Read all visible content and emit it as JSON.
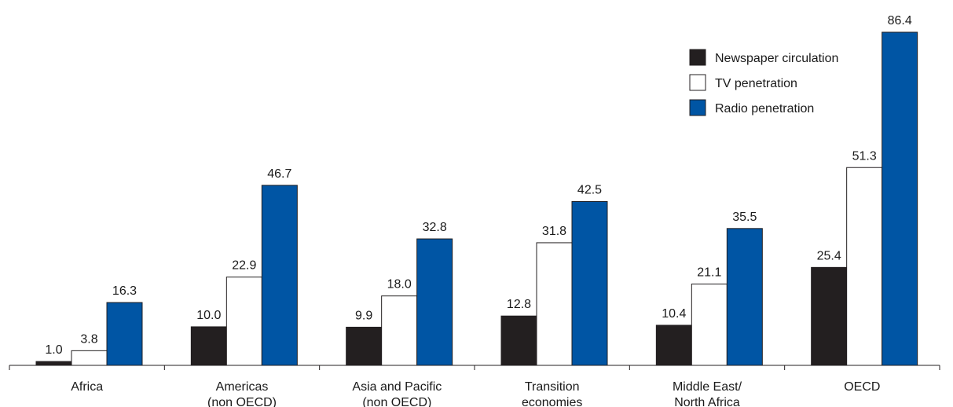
{
  "chart_data": {
    "type": "bar",
    "title": "",
    "xlabel": "",
    "ylabel": "",
    "grid": false,
    "legend_position": "top-right",
    "categories": [
      [
        "Africa"
      ],
      [
        "Americas",
        "(non OECD)"
      ],
      [
        "Asia and Pacific",
        "(non OECD)"
      ],
      [
        "Transition",
        "economies"
      ],
      [
        "Middle East/",
        "North Africa"
      ],
      [
        "OECD"
      ]
    ],
    "series": [
      {
        "name": "Newspaper circulation",
        "color": "#231f20",
        "values": [
          1.0,
          10.0,
          9.9,
          12.8,
          10.4,
          25.4
        ],
        "labels": [
          "1.0",
          "10.0",
          "9.9",
          "12.8",
          "10.4",
          "25.4"
        ]
      },
      {
        "name": "TV penetration",
        "color": "#ffffff",
        "values": [
          3.8,
          22.9,
          18.0,
          31.8,
          21.1,
          51.3
        ],
        "labels": [
          "3.8",
          "22.9",
          "18.0",
          "31.8",
          "21.1",
          "51.3"
        ]
      },
      {
        "name": "Radio penetration",
        "color": "#0055a4",
        "values": [
          16.3,
          46.7,
          32.8,
          42.5,
          35.5,
          86.4
        ],
        "labels": [
          "16.3",
          "46.7",
          "32.8",
          "42.5",
          "35.5",
          "86.4"
        ]
      }
    ],
    "ylim": [
      0,
      86.4
    ]
  }
}
